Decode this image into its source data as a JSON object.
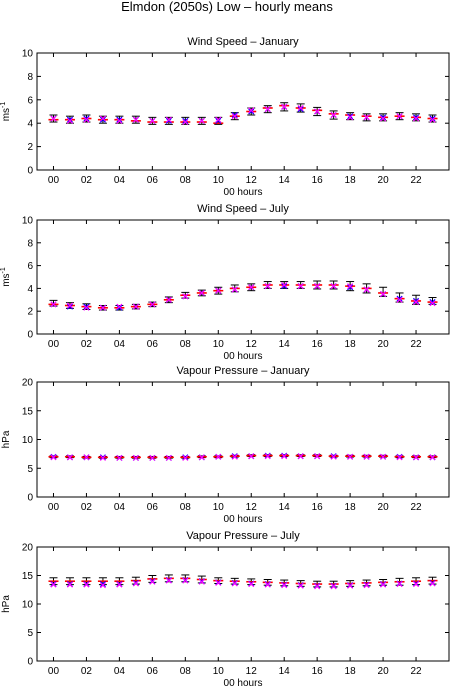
{
  "figure_title": "Elmdon (2050s) Low – hourly means",
  "colors": {
    "errorbar": "#000000",
    "series_a": "#ff0000",
    "series_b": "#0000ff",
    "series_c": "#ff00ff"
  },
  "chart_data": [
    {
      "type": "scatter",
      "title": "Wind Speed – January",
      "xlabel": "00 hours",
      "ylabel_base": "ms",
      "ylabel_sup": "-1",
      "x": [
        0,
        1,
        2,
        3,
        4,
        5,
        6,
        7,
        8,
        9,
        10,
        11,
        12,
        13,
        14,
        15,
        16,
        17,
        18,
        19,
        20,
        21,
        22,
        23
      ],
      "xtick_values": [
        0,
        2,
        4,
        6,
        8,
        10,
        12,
        14,
        16,
        18,
        20,
        22
      ],
      "xtick_labels": [
        "00",
        "02",
        "04",
        "06",
        "08",
        "10",
        "12",
        "14",
        "16",
        "18",
        "20",
        "22"
      ],
      "xlim": [
        -1,
        24
      ],
      "ylim": [
        0,
        10
      ],
      "ytick_values": [
        0,
        2,
        4,
        6,
        8,
        10
      ],
      "ytick_labels": [
        "0",
        "2",
        "4",
        "6",
        "8",
        "10"
      ],
      "grid": false,
      "mean": [
        4.4,
        4.3,
        4.4,
        4.3,
        4.3,
        4.3,
        4.2,
        4.2,
        4.2,
        4.2,
        4.2,
        4.6,
        5.0,
        5.2,
        5.4,
        5.3,
        5.0,
        4.7,
        4.6,
        4.5,
        4.5,
        4.6,
        4.5,
        4.4
      ],
      "err": [
        0.3,
        0.3,
        0.3,
        0.3,
        0.3,
        0.3,
        0.3,
        0.3,
        0.3,
        0.3,
        0.3,
        0.3,
        0.3,
        0.3,
        0.35,
        0.35,
        0.35,
        0.35,
        0.3,
        0.3,
        0.3,
        0.3,
        0.3,
        0.3
      ],
      "series": [
        {
          "marker": "line",
          "color_key": "series_a",
          "values": [
            4.3,
            4.3,
            4.4,
            4.3,
            4.3,
            4.2,
            4.1,
            4.1,
            4.1,
            4.1,
            4.0,
            4.6,
            5.0,
            5.3,
            5.5,
            5.3,
            5.1,
            4.8,
            4.7,
            4.6,
            4.5,
            4.6,
            4.5,
            4.4
          ]
        },
        {
          "marker": "x",
          "color_key": "series_b",
          "values": [
            4.4,
            4.3,
            4.4,
            4.3,
            4.3,
            4.3,
            4.2,
            4.2,
            4.2,
            4.2,
            4.2,
            4.7,
            5.0,
            5.2,
            5.4,
            5.2,
            5.0,
            4.7,
            4.6,
            4.5,
            4.5,
            4.6,
            4.5,
            4.4
          ]
        },
        {
          "marker": "x",
          "color_key": "series_c",
          "values": [
            4.4,
            4.2,
            4.3,
            4.4,
            4.2,
            4.3,
            4.2,
            4.3,
            4.1,
            4.2,
            4.3,
            4.6,
            5.1,
            5.2,
            5.4,
            5.3,
            5.0,
            4.7,
            4.5,
            4.5,
            4.4,
            4.6,
            4.4,
            4.3
          ]
        }
      ]
    },
    {
      "type": "scatter",
      "title": "Wind Speed – July",
      "xlabel": "00 hours",
      "ylabel_base": "ms",
      "ylabel_sup": "-1",
      "x": [
        0,
        1,
        2,
        3,
        4,
        5,
        6,
        7,
        8,
        9,
        10,
        11,
        12,
        13,
        14,
        15,
        16,
        17,
        18,
        19,
        20,
        21,
        22,
        23
      ],
      "xtick_values": [
        0,
        2,
        4,
        6,
        8,
        10,
        12,
        14,
        16,
        18,
        20,
        22
      ],
      "xtick_labels": [
        "00",
        "02",
        "04",
        "06",
        "08",
        "10",
        "12",
        "14",
        "16",
        "18",
        "20",
        "22"
      ],
      "xlim": [
        -1,
        24
      ],
      "ylim": [
        0,
        10
      ],
      "ytick_values": [
        0,
        2,
        4,
        6,
        8,
        10
      ],
      "ytick_labels": [
        "0",
        "2",
        "4",
        "6",
        "8",
        "10"
      ],
      "grid": false,
      "mean": [
        2.7,
        2.5,
        2.4,
        2.3,
        2.3,
        2.4,
        2.6,
        3.0,
        3.4,
        3.6,
        3.8,
        4.0,
        4.1,
        4.3,
        4.3,
        4.3,
        4.3,
        4.3,
        4.2,
        4.0,
        3.7,
        3.2,
        3.0,
        2.9
      ],
      "err": [
        0.25,
        0.25,
        0.25,
        0.2,
        0.2,
        0.2,
        0.2,
        0.25,
        0.25,
        0.25,
        0.3,
        0.3,
        0.3,
        0.3,
        0.3,
        0.3,
        0.35,
        0.35,
        0.4,
        0.4,
        0.4,
        0.4,
        0.4,
        0.3
      ],
      "series": [
        {
          "marker": "line",
          "color_key": "series_a",
          "values": [
            2.6,
            2.5,
            2.4,
            2.3,
            2.3,
            2.4,
            2.6,
            3.0,
            3.4,
            3.6,
            3.8,
            4.0,
            4.1,
            4.3,
            4.3,
            4.3,
            4.3,
            4.3,
            4.2,
            4.0,
            3.6,
            3.1,
            2.9,
            2.8
          ]
        },
        {
          "marker": "x",
          "color_key": "series_b",
          "values": [
            2.6,
            2.4,
            2.4,
            2.3,
            2.3,
            2.4,
            2.6,
            3.0,
            3.3,
            3.6,
            3.8,
            3.9,
            4.1,
            4.2,
            4.2,
            4.2,
            4.2,
            4.2,
            4.1,
            3.9,
            3.5,
            3.1,
            2.9,
            2.8
          ]
        },
        {
          "marker": "x",
          "color_key": "series_c",
          "values": [
            2.6,
            2.5,
            2.3,
            2.3,
            2.4,
            2.4,
            2.6,
            3.0,
            3.3,
            3.6,
            3.8,
            3.9,
            4.1,
            4.2,
            4.3,
            4.2,
            4.2,
            4.2,
            4.2,
            3.9,
            3.5,
            3.0,
            2.8,
            2.7
          ]
        }
      ]
    },
    {
      "type": "scatter",
      "title": "Vapour Pressure – January",
      "xlabel": "00 hours",
      "ylabel_base": "hPa",
      "ylabel_sup": "",
      "x": [
        0,
        1,
        2,
        3,
        4,
        5,
        6,
        7,
        8,
        9,
        10,
        11,
        12,
        13,
        14,
        15,
        16,
        17,
        18,
        19,
        20,
        21,
        22,
        23
      ],
      "xtick_values": [
        0,
        2,
        4,
        6,
        8,
        10,
        12,
        14,
        16,
        18,
        20,
        22
      ],
      "xtick_labels": [
        "00",
        "02",
        "04",
        "06",
        "08",
        "10",
        "12",
        "14",
        "16",
        "18",
        "20",
        "22"
      ],
      "xlim": [
        -1,
        24
      ],
      "ylim": [
        0,
        20
      ],
      "ytick_values": [
        0,
        5,
        10,
        15,
        20
      ],
      "ytick_labels": [
        "0",
        "5",
        "10",
        "15",
        "20"
      ],
      "grid": false,
      "mean": [
        7.0,
        7.0,
        6.9,
        6.9,
        6.9,
        6.9,
        6.9,
        6.9,
        6.9,
        7.0,
        7.0,
        7.1,
        7.2,
        7.2,
        7.2,
        7.2,
        7.2,
        7.1,
        7.1,
        7.1,
        7.1,
        7.0,
        7.0,
        7.0
      ],
      "err": [
        0.15,
        0.15,
        0.15,
        0.15,
        0.15,
        0.15,
        0.15,
        0.15,
        0.15,
        0.15,
        0.15,
        0.15,
        0.15,
        0.15,
        0.15,
        0.15,
        0.15,
        0.15,
        0.15,
        0.15,
        0.15,
        0.15,
        0.15,
        0.15
      ],
      "series": [
        {
          "marker": "line",
          "color_key": "series_a",
          "values": [
            7.0,
            7.0,
            6.9,
            6.9,
            6.9,
            6.9,
            6.9,
            6.9,
            6.9,
            7.0,
            7.0,
            7.1,
            7.2,
            7.2,
            7.2,
            7.2,
            7.2,
            7.1,
            7.1,
            7.1,
            7.1,
            7.0,
            7.0,
            7.0
          ]
        },
        {
          "marker": "x",
          "color_key": "series_b",
          "values": [
            7.0,
            6.9,
            6.9,
            6.9,
            6.8,
            6.8,
            6.8,
            6.8,
            6.9,
            6.9,
            7.0,
            7.1,
            7.1,
            7.2,
            7.2,
            7.1,
            7.1,
            7.1,
            7.0,
            7.0,
            7.0,
            7.0,
            6.9,
            6.9
          ]
        },
        {
          "marker": "x",
          "color_key": "series_c",
          "values": [
            6.9,
            6.9,
            6.9,
            6.8,
            6.8,
            6.8,
            6.8,
            6.8,
            6.8,
            6.9,
            7.0,
            7.0,
            7.1,
            7.1,
            7.1,
            7.1,
            7.1,
            7.0,
            7.0,
            7.0,
            7.0,
            6.9,
            6.9,
            6.9
          ]
        }
      ]
    },
    {
      "type": "scatter",
      "title": "Vapour Pressure – July",
      "xlabel": "00 hours",
      "ylabel_base": "hPa",
      "ylabel_sup": "",
      "x": [
        0,
        1,
        2,
        3,
        4,
        5,
        6,
        7,
        8,
        9,
        10,
        11,
        12,
        13,
        14,
        15,
        16,
        17,
        18,
        19,
        20,
        21,
        22,
        23
      ],
      "xtick_values": [
        0,
        2,
        4,
        6,
        8,
        10,
        12,
        14,
        16,
        18,
        20,
        22
      ],
      "xtick_labels": [
        "00",
        "02",
        "04",
        "06",
        "08",
        "10",
        "12",
        "14",
        "16",
        "18",
        "20",
        "22"
      ],
      "xlim": [
        -1,
        24
      ],
      "ylim": [
        0,
        20
      ],
      "ytick_values": [
        0,
        5,
        10,
        15,
        20
      ],
      "ytick_labels": [
        "0",
        "5",
        "10",
        "15",
        "20"
      ],
      "grid": false,
      "mean": [
        14.0,
        14.0,
        14.0,
        14.0,
        14.0,
        14.1,
        14.4,
        14.5,
        14.5,
        14.3,
        14.1,
        14.0,
        13.9,
        13.8,
        13.7,
        13.6,
        13.5,
        13.5,
        13.6,
        13.7,
        13.8,
        13.9,
        14.0,
        14.1
      ],
      "err": [
        0.6,
        0.6,
        0.6,
        0.6,
        0.6,
        0.6,
        0.6,
        0.6,
        0.6,
        0.6,
        0.5,
        0.5,
        0.5,
        0.5,
        0.5,
        0.5,
        0.5,
        0.5,
        0.5,
        0.5,
        0.5,
        0.6,
        0.6,
        0.6
      ],
      "series": [
        {
          "marker": "line",
          "color_key": "series_a",
          "values": [
            14.0,
            14.0,
            14.0,
            14.0,
            14.0,
            14.1,
            14.4,
            14.5,
            14.5,
            14.3,
            14.1,
            14.0,
            13.9,
            13.8,
            13.7,
            13.6,
            13.5,
            13.5,
            13.6,
            13.7,
            13.8,
            13.9,
            14.0,
            14.1
          ]
        },
        {
          "marker": "x",
          "color_key": "series_b",
          "values": [
            13.5,
            13.5,
            13.5,
            13.5,
            13.5,
            13.7,
            14.0,
            14.2,
            14.2,
            14.0,
            13.8,
            13.7,
            13.6,
            13.5,
            13.4,
            13.3,
            13.2,
            13.2,
            13.3,
            13.4,
            13.5,
            13.6,
            13.6,
            13.7
          ]
        },
        {
          "marker": "x",
          "color_key": "series_c",
          "values": [
            13.4,
            13.4,
            13.4,
            13.3,
            13.4,
            13.6,
            13.9,
            14.1,
            14.1,
            13.9,
            13.7,
            13.6,
            13.5,
            13.4,
            13.3,
            13.2,
            13.1,
            13.1,
            13.2,
            13.3,
            13.4,
            13.5,
            13.5,
            13.6
          ]
        }
      ]
    }
  ]
}
